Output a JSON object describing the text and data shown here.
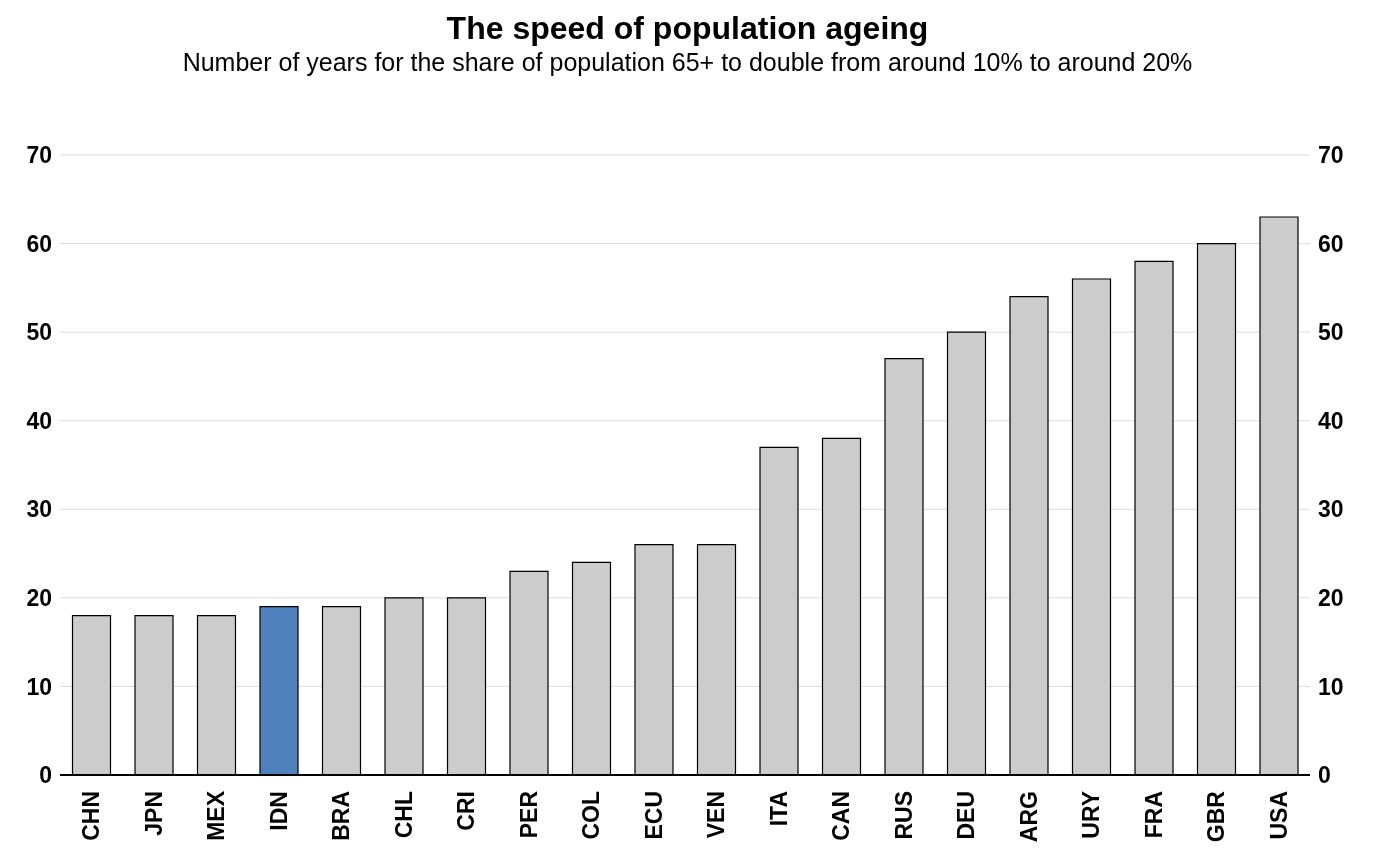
{
  "chart_data": {
    "type": "bar",
    "title": "The speed of population ageing",
    "subtitle": "Number of years for the share of population 65+ to double from around 10% to around 20%",
    "categories": [
      "CHN",
      "JPN",
      "MEX",
      "IDN",
      "BRA",
      "CHL",
      "CRI",
      "PER",
      "COL",
      "ECU",
      "VEN",
      "ITA",
      "CAN",
      "RUS",
      "DEU",
      "ARG",
      "URY",
      "FRA",
      "GBR",
      "USA"
    ],
    "values": [
      18,
      18,
      18,
      19,
      19,
      20,
      20,
      23,
      24,
      26,
      26,
      37,
      38,
      47,
      50,
      54,
      56,
      58,
      60,
      63
    ],
    "colors": [
      "#cccccc",
      "#cccccc",
      "#cccccc",
      "#4f81bd",
      "#cccccc",
      "#cccccc",
      "#cccccc",
      "#cccccc",
      "#cccccc",
      "#cccccc",
      "#cccccc",
      "#cccccc",
      "#cccccc",
      "#cccccc",
      "#cccccc",
      "#cccccc",
      "#cccccc",
      "#cccccc",
      "#cccccc",
      "#cccccc"
    ],
    "ylim": [
      0,
      70
    ],
    "yticks": [
      0,
      10,
      20,
      30,
      40,
      50,
      60,
      70
    ],
    "y2lim": [
      0,
      70
    ],
    "y2ticks": [
      0,
      10,
      20,
      30,
      40,
      50,
      60,
      70
    ],
    "grid": "y"
  }
}
